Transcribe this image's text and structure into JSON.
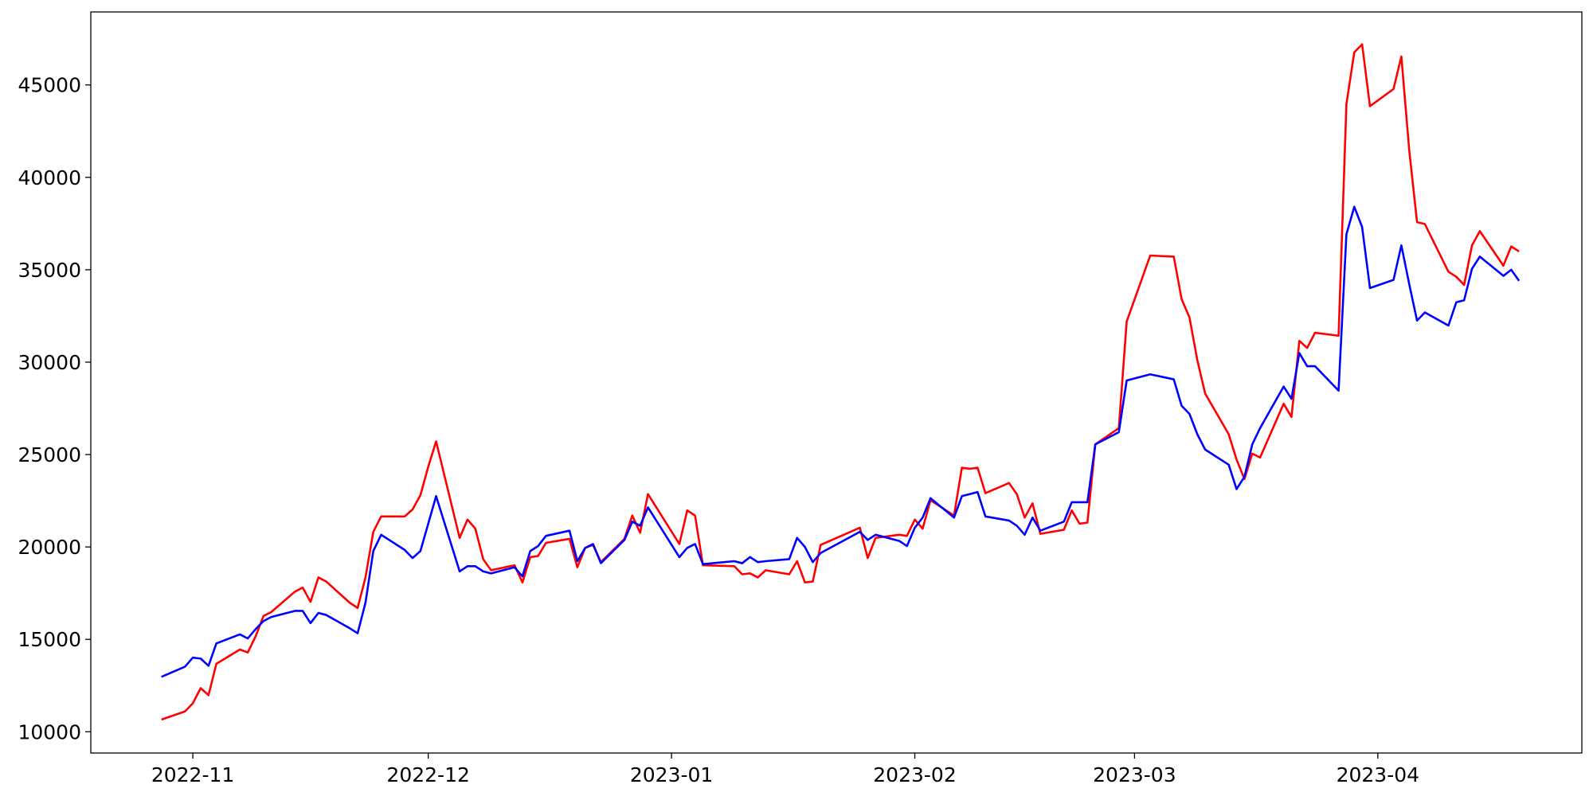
{
  "chart_data": {
    "type": "line",
    "x": [
      "2022-10-28",
      "2022-10-31",
      "2022-11-01",
      "2022-11-02",
      "2022-11-03",
      "2022-11-04",
      "2022-11-07",
      "2022-11-08",
      "2022-11-09",
      "2022-11-10",
      "2022-11-11",
      "2022-11-14",
      "2022-11-15",
      "2022-11-16",
      "2022-11-17",
      "2022-11-18",
      "2022-11-21",
      "2022-11-22",
      "2022-11-23",
      "2022-11-24",
      "2022-11-25",
      "2022-11-28",
      "2022-11-29",
      "2022-11-30",
      "2022-12-01",
      "2022-12-02",
      "2022-12-05",
      "2022-12-06",
      "2022-12-07",
      "2022-12-08",
      "2022-12-09",
      "2022-12-12",
      "2022-12-13",
      "2022-12-14",
      "2022-12-15",
      "2022-12-16",
      "2022-12-19",
      "2022-12-20",
      "2022-12-21",
      "2022-12-22",
      "2022-12-23",
      "2022-12-26",
      "2022-12-27",
      "2022-12-28",
      "2022-12-29",
      "2023-01-02",
      "2023-01-03",
      "2023-01-04",
      "2023-01-05",
      "2023-01-09",
      "2023-01-10",
      "2023-01-11",
      "2023-01-12",
      "2023-01-13",
      "2023-01-16",
      "2023-01-17",
      "2023-01-18",
      "2023-01-19",
      "2023-01-20",
      "2023-01-25",
      "2023-01-26",
      "2023-01-27",
      "2023-01-30",
      "2023-01-31",
      "2023-02-01",
      "2023-02-02",
      "2023-02-03",
      "2023-02-06",
      "2023-02-07",
      "2023-02-08",
      "2023-02-09",
      "2023-02-10",
      "2023-02-13",
      "2023-02-14",
      "2023-02-15",
      "2023-02-16",
      "2023-02-17",
      "2023-02-20",
      "2023-02-21",
      "2023-02-22",
      "2023-02-23",
      "2023-02-24",
      "2023-02-27",
      "2023-02-28",
      "2023-03-03",
      "2023-03-06",
      "2023-03-07",
      "2023-03-08",
      "2023-03-09",
      "2023-03-10",
      "2023-03-13",
      "2023-03-14",
      "2023-03-15",
      "2023-03-16",
      "2023-03-17",
      "2023-03-20",
      "2023-03-21",
      "2023-03-22",
      "2023-03-23",
      "2023-03-24",
      "2023-03-27",
      "2023-03-28",
      "2023-03-29",
      "2023-03-30",
      "2023-03-31",
      "2023-04-03",
      "2023-04-04",
      "2023-04-05",
      "2023-04-06",
      "2023-04-07",
      "2023-04-10",
      "2023-04-11",
      "2023-04-12",
      "2023-04-13",
      "2023-04-14",
      "2023-04-17",
      "2023-04-18",
      "2023-04-19"
    ],
    "series": [
      {
        "color": "red",
        "values": [
          10660,
          11100,
          11540,
          12360,
          11980,
          13680,
          14450,
          14290,
          15160,
          16260,
          16480,
          17580,
          17800,
          17030,
          18350,
          18130,
          16980,
          16700,
          18350,
          20820,
          21650,
          21650,
          22030,
          22800,
          24340,
          25710,
          20490,
          21480,
          20990,
          19340,
          18740,
          19010,
          18080,
          19450,
          19510,
          20220,
          20440,
          18900,
          19950,
          20110,
          19180,
          20440,
          21700,
          20770,
          22860,
          20160,
          21980,
          21700,
          19010,
          18960,
          18520,
          18570,
          18350,
          18740,
          18520,
          19230,
          18080,
          18130,
          20110,
          21040,
          19400,
          20490,
          20660,
          20600,
          21480,
          20990,
          22530,
          21700,
          24290,
          24230,
          24290,
          22910,
          23460,
          22860,
          21590,
          22360,
          20710,
          20930,
          21980,
          21260,
          21320,
          25550,
          26430,
          32200,
          35770,
          35710,
          33410,
          32420,
          30110,
          28300,
          26100,
          24730,
          23680,
          25050,
          24840,
          27750,
          27030,
          31150,
          30770,
          31590,
          31430,
          43960,
          46760,
          47200,
          43850,
          44780,
          46540,
          41480,
          37580,
          37470,
          34890,
          34620,
          34180,
          36320,
          37090,
          35220,
          36260,
          35990
        ]
      },
      {
        "color": "blue",
        "values": [
          12970,
          13520,
          14010,
          13960,
          13570,
          14780,
          15270,
          15050,
          15550,
          15990,
          16210,
          16540,
          16540,
          15880,
          16430,
          16320,
          15600,
          15330,
          16980,
          19780,
          20660,
          19840,
          19400,
          19780,
          21260,
          22750,
          18680,
          18960,
          18960,
          18680,
          18570,
          18900,
          18410,
          19780,
          20050,
          20600,
          20880,
          19230,
          19950,
          20160,
          19120,
          20380,
          21370,
          21150,
          22140,
          19450,
          19950,
          20160,
          19070,
          19230,
          19120,
          19450,
          19180,
          19230,
          19340,
          20490,
          20000,
          19180,
          19670,
          20820,
          20380,
          20660,
          20330,
          20050,
          21040,
          21590,
          22640,
          21590,
          22750,
          22860,
          22970,
          21650,
          21430,
          21150,
          20660,
          21590,
          20880,
          21370,
          22420,
          22420,
          22420,
          25550,
          26210,
          29010,
          29340,
          29070,
          27640,
          27200,
          26100,
          25270,
          24450,
          23130,
          23790,
          25550,
          26430,
          28680,
          28020,
          30490,
          29780,
          29780,
          28460,
          36920,
          38410,
          37310,
          34010,
          34450,
          36320,
          34230,
          32250,
          32690,
          31980,
          33240,
          33350,
          35050,
          35710,
          34670,
          35000,
          34400
        ]
      }
    ],
    "xlim": [
      "2022-10-19",
      "2023-04-27"
    ],
    "xticks": [
      {
        "value": "2022-11-01",
        "label": "2022-11"
      },
      {
        "value": "2022-12-01",
        "label": "2022-12"
      },
      {
        "value": "2023-01-01",
        "label": "2023-01"
      },
      {
        "value": "2023-02-01",
        "label": "2023-02"
      },
      {
        "value": "2023-03-01",
        "label": "2023-03"
      },
      {
        "value": "2023-04-01",
        "label": "2023-04"
      }
    ],
    "ylim": [
      8850,
      48950
    ],
    "yticks": [
      10000,
      15000,
      20000,
      25000,
      30000,
      35000,
      40000,
      45000
    ],
    "grid": false
  }
}
